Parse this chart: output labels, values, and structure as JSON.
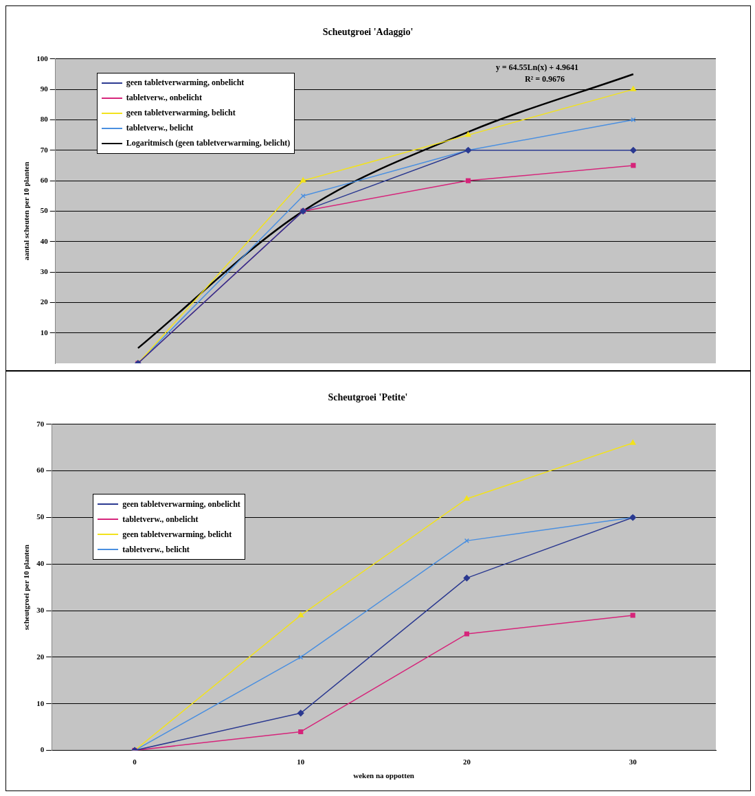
{
  "chart_data": [
    {
      "type": "line",
      "title": "Scheutgroei 'Adaggio'",
      "ylabel": "aantal scheuten per 10 planten",
      "categories": [
        null,
        null,
        null,
        null
      ],
      "ylim": [
        0,
        100
      ],
      "yticks": [
        10,
        20,
        30,
        40,
        50,
        60,
        70,
        80,
        90,
        100
      ],
      "tick_labels": "y",
      "grid": "y",
      "legend": "top left",
      "annotations": [
        "y = 64.55Ln(x) + 4.9641",
        "R² = 0.9676"
      ],
      "series": [
        {
          "name": "geen tabletverwarming, onbelicht",
          "color": "#2b3990",
          "marker": "diamond",
          "values": [
            0,
            50,
            70,
            70
          ]
        },
        {
          "name": "tabletverw., onbelicht",
          "color": "#d6247a",
          "marker": "square",
          "values": [
            0,
            50,
            60,
            65
          ]
        },
        {
          "name": "geen tabletverwarming, belicht",
          "color": "#f2e21c",
          "marker": "triangle",
          "values": [
            0,
            60,
            75,
            90
          ]
        },
        {
          "name": "tabletverw., belicht",
          "color": "#4a8fe0",
          "marker": "cross",
          "values": [
            0,
            55,
            70,
            80
          ]
        },
        {
          "name": "Logaritmisch (geen tabletverwarming, belicht)",
          "color": "#000000",
          "marker": "none",
          "values": [
            5,
            50,
            76,
            95
          ]
        }
      ]
    },
    {
      "type": "line",
      "title": "Scheutgroei 'Petite'",
      "xlabel": "weken na oppotten",
      "ylabel": "scheutgroei per 10 planten",
      "x": [
        0,
        10,
        20,
        30
      ],
      "xlim": [
        -5,
        35
      ],
      "xticks": [
        0,
        10,
        20,
        30
      ],
      "ylim": [
        0,
        70
      ],
      "yticks": [
        0,
        10,
        20,
        30,
        40,
        50,
        60,
        70
      ],
      "grid": "y",
      "legend": "left",
      "series": [
        {
          "name": "geen tabletverwarming, onbelicht",
          "color": "#2b3990",
          "marker": "diamond",
          "values": [
            0,
            8,
            37,
            50
          ]
        },
        {
          "name": "tabletverw., onbelicht",
          "color": "#d6247a",
          "marker": "square",
          "values": [
            0,
            4,
            25,
            29
          ]
        },
        {
          "name": "geen tabletverwarming, belicht",
          "color": "#f2e21c",
          "marker": "triangle",
          "values": [
            0,
            29,
            54,
            66
          ]
        },
        {
          "name": "tabletverw., belicht",
          "color": "#4a8fe0",
          "marker": "cross",
          "values": [
            0,
            20,
            45,
            50
          ]
        }
      ]
    }
  ]
}
